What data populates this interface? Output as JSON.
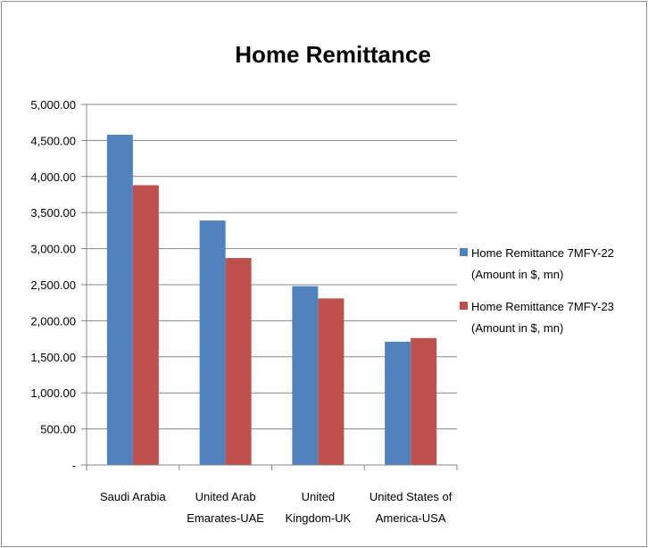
{
  "chart_data": {
    "type": "bar",
    "title": "Home Remittance",
    "xlabel": "",
    "ylabel": "",
    "categories": [
      [
        "Saudi Arabia"
      ],
      [
        "United Arab",
        "Emarates-UAE"
      ],
      [
        "United",
        "Kingdom-UK"
      ],
      [
        "United States of",
        "America-USA"
      ]
    ],
    "series": [
      {
        "name": [
          "Home Remittance 7MFY-22",
          "(Amount in $, mn)"
        ],
        "color": "#4F81BD",
        "values": [
          4580,
          3390,
          2480,
          1710
        ]
      },
      {
        "name": [
          "Home Remittance 7MFY-23",
          "(Amount in $, mn)"
        ],
        "color": "#C0504D",
        "values": [
          3880,
          2870,
          2310,
          1760
        ]
      }
    ],
    "ylim": [
      0,
      5000
    ],
    "yticks": [
      0,
      500,
      1000,
      1500,
      2000,
      2500,
      3000,
      3500,
      4000,
      4500,
      5000
    ],
    "ytick_labels": [
      "-",
      "500.00",
      "1,000.00",
      "1,500.00",
      "2,000.00",
      "2,500.00",
      "3,000.00",
      "3,500.00",
      "4,000.00",
      "4,500.00",
      "5,000.00"
    ],
    "grid": true,
    "legend_position": "right"
  }
}
